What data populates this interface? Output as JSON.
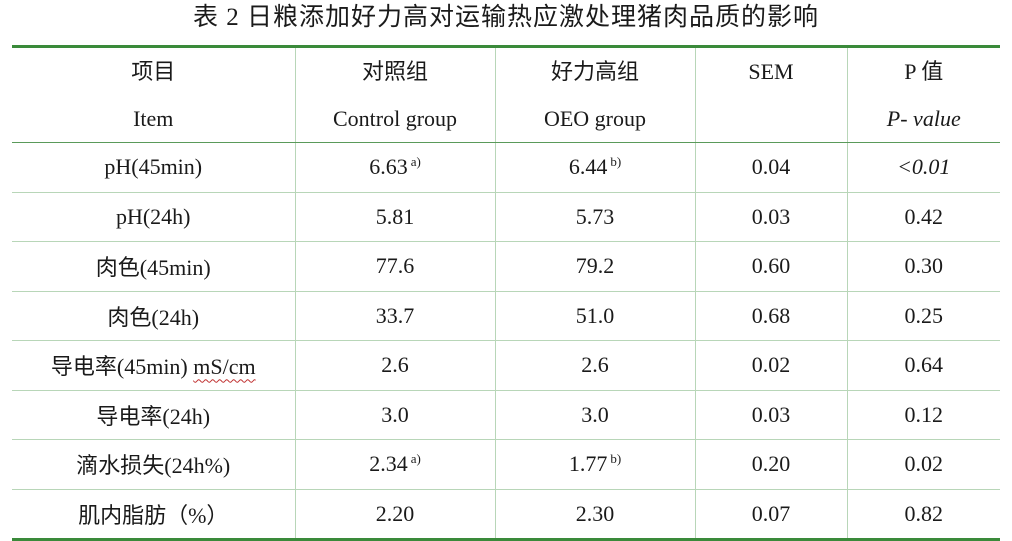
{
  "caption": "表 2 日粮添加好力高对运输热应激处理猪肉品质的影响",
  "header": {
    "row1": [
      "项目",
      "对照组",
      "好力高组",
      "SEM",
      "P 值"
    ],
    "row2": [
      "Item",
      "Control group",
      "OEO group",
      "",
      "P- value"
    ]
  },
  "rows": [
    {
      "item": "pH(45min)",
      "control": "6.63",
      "control_sup": "a)",
      "oeo": "6.44",
      "oeo_sup": "b)",
      "sem": "0.04",
      "p": "<0.01"
    },
    {
      "item": "pH(24h)",
      "control": "5.81",
      "control_sup": "",
      "oeo": "5.73",
      "oeo_sup": "",
      "sem": "0.03",
      "p": "0.42"
    },
    {
      "item": "肉色(45min)",
      "control": "77.6",
      "control_sup": "",
      "oeo": "79.2",
      "oeo_sup": "",
      "sem": "0.60",
      "p": "0.30"
    },
    {
      "item": "肉色(24h)",
      "control": "33.7",
      "control_sup": "",
      "oeo": "51.0",
      "oeo_sup": "",
      "sem": "0.68",
      "p": "0.25"
    },
    {
      "item": "导电率(45min)",
      "item_unit": "mS/cm",
      "control": "2.6",
      "control_sup": "",
      "oeo": "2.6",
      "oeo_sup": "",
      "sem": "0.02",
      "p": "0.64"
    },
    {
      "item": "导电率(24h)",
      "control": "3.0",
      "control_sup": "",
      "oeo": "3.0",
      "oeo_sup": "",
      "sem": "0.03",
      "p": "0.12"
    },
    {
      "item": "滴水损失(24h%)",
      "control": "2.34",
      "control_sup": "a)",
      "oeo": "1.77",
      "oeo_sup": "b)",
      "sem": "0.20",
      "p": "0.02"
    },
    {
      "item": "肌内脂肪（%）",
      "control": "2.20",
      "control_sup": "",
      "oeo": "2.30",
      "oeo_sup": "",
      "sem": "0.07",
      "p": "0.82"
    }
  ],
  "colors": {
    "rule": "#3a8a3a",
    "grid": "#b8d6b8",
    "spellcheck": "#c03030"
  }
}
